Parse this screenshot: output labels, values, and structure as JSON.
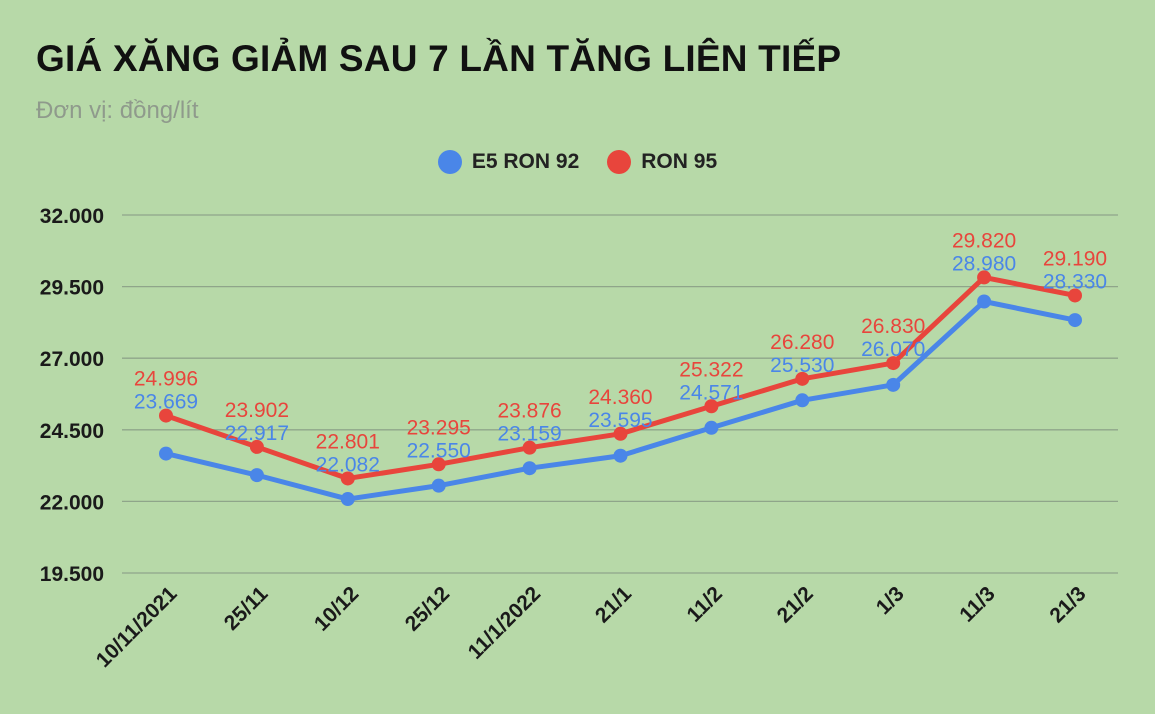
{
  "header": {
    "title": "GIÁ XĂNG GIẢM SAU 7 LẦN TĂNG LIÊN TIẾP",
    "subtitle": "Đơn vị: đồng/lít"
  },
  "colors": {
    "background": "#b7d9a8",
    "gridline": "#8fa58a",
    "e5": "#4a86e8",
    "ron95": "#e8453c"
  },
  "chart_data": {
    "type": "line",
    "title": "GIÁ XĂNG GIẢM SAU 7 LẦN TĂNG LIÊN TIẾP",
    "subtitle": "Đơn vị: đồng/lít",
    "xlabel": "",
    "ylabel": "",
    "categories": [
      "10/11/2021",
      "25/11",
      "10/12",
      "25/12",
      "11/1/2022",
      "21/1",
      "11/2",
      "21/2",
      "1/3",
      "11/3",
      "21/3"
    ],
    "ylim": [
      19500,
      32000
    ],
    "yticks": [
      19500,
      22000,
      24500,
      27000,
      29500,
      32000
    ],
    "ytick_labels": [
      "19.500",
      "22.000",
      "24.500",
      "27.000",
      "29.500",
      "32.000"
    ],
    "grid": true,
    "legend_position": "top",
    "series": [
      {
        "name": "E5 RON 92",
        "color": "#4a86e8",
        "values": [
          23669,
          22917,
          22082,
          22550,
          23159,
          23595,
          24571,
          25530,
          26070,
          28980,
          28330
        ],
        "labels": [
          "23.669",
          "22.917",
          "22.082",
          "22.550",
          "23.159",
          "23.595",
          "24.571",
          "25.530",
          "26.070",
          "28.980",
          "28.330"
        ]
      },
      {
        "name": "RON 95",
        "color": "#e8453c",
        "values": [
          24996,
          23902,
          22801,
          23295,
          23876,
          24360,
          25322,
          26280,
          26830,
          29820,
          29190
        ],
        "labels": [
          "24.996",
          "23.902",
          "22.801",
          "23.295",
          "23.876",
          "24.360",
          "25.322",
          "26.280",
          "26.830",
          "29.820",
          "29.190"
        ]
      }
    ]
  }
}
